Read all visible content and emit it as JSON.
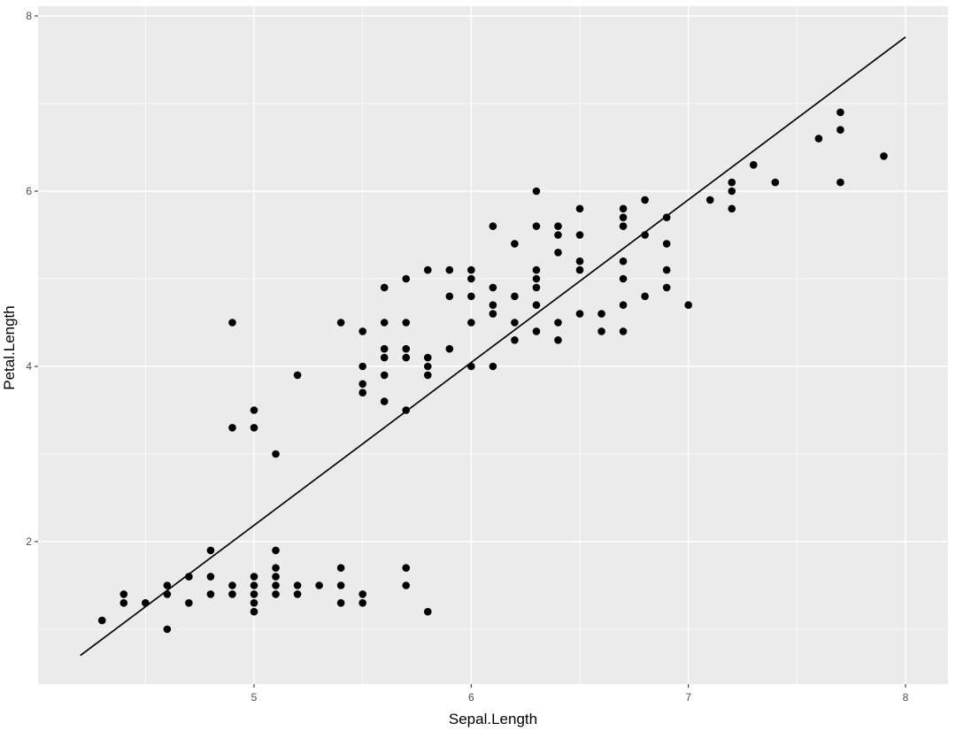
{
  "chart_data": {
    "type": "scatter",
    "xlabel": "Sepal.Length",
    "ylabel": "Petal.Length",
    "xlim": [
      4.0,
      8.2
    ],
    "ylim": [
      0.7,
      8.0
    ],
    "x_ticks": [
      5,
      6,
      7,
      8
    ],
    "y_ticks": [
      2,
      4,
      6,
      8
    ],
    "grid": true,
    "points": [
      [
        4.3,
        1.1
      ],
      [
        4.4,
        1.3
      ],
      [
        4.4,
        1.4
      ],
      [
        4.5,
        1.3
      ],
      [
        4.6,
        1.0
      ],
      [
        4.6,
        1.4
      ],
      [
        4.6,
        1.5
      ],
      [
        4.7,
        1.3
      ],
      [
        4.7,
        1.6
      ],
      [
        4.8,
        1.4
      ],
      [
        4.8,
        1.6
      ],
      [
        4.8,
        1.9
      ],
      [
        4.9,
        1.4
      ],
      [
        4.9,
        1.5
      ],
      [
        4.9,
        3.3
      ],
      [
        4.9,
        4.5
      ],
      [
        5.0,
        1.2
      ],
      [
        5.0,
        1.3
      ],
      [
        5.0,
        1.4
      ],
      [
        5.0,
        1.5
      ],
      [
        5.0,
        1.6
      ],
      [
        5.0,
        3.3
      ],
      [
        5.0,
        3.5
      ],
      [
        5.1,
        1.4
      ],
      [
        5.1,
        1.5
      ],
      [
        5.1,
        1.6
      ],
      [
        5.1,
        1.7
      ],
      [
        5.1,
        1.9
      ],
      [
        5.1,
        3.0
      ],
      [
        5.2,
        1.4
      ],
      [
        5.2,
        1.5
      ],
      [
        5.2,
        3.9
      ],
      [
        5.3,
        1.5
      ],
      [
        5.4,
        1.3
      ],
      [
        5.4,
        1.5
      ],
      [
        5.4,
        1.7
      ],
      [
        5.4,
        4.5
      ],
      [
        5.5,
        1.3
      ],
      [
        5.5,
        1.4
      ],
      [
        5.5,
        3.7
      ],
      [
        5.5,
        3.8
      ],
      [
        5.5,
        4.0
      ],
      [
        5.5,
        4.4
      ],
      [
        5.6,
        3.6
      ],
      [
        5.6,
        3.9
      ],
      [
        5.6,
        4.1
      ],
      [
        5.6,
        4.2
      ],
      [
        5.6,
        4.5
      ],
      [
        5.6,
        4.9
      ],
      [
        5.7,
        1.5
      ],
      [
        5.7,
        1.7
      ],
      [
        5.7,
        3.5
      ],
      [
        5.7,
        4.1
      ],
      [
        5.7,
        4.2
      ],
      [
        5.7,
        4.5
      ],
      [
        5.7,
        5.0
      ],
      [
        5.8,
        1.2
      ],
      [
        5.8,
        3.9
      ],
      [
        5.8,
        4.0
      ],
      [
        5.8,
        4.1
      ],
      [
        5.8,
        5.1
      ],
      [
        5.9,
        4.2
      ],
      [
        5.9,
        4.8
      ],
      [
        5.9,
        5.1
      ],
      [
        6.0,
        4.0
      ],
      [
        6.0,
        4.5
      ],
      [
        6.0,
        4.8
      ],
      [
        6.0,
        5.0
      ],
      [
        6.0,
        5.1
      ],
      [
        6.1,
        4.0
      ],
      [
        6.1,
        4.6
      ],
      [
        6.1,
        4.7
      ],
      [
        6.1,
        4.9
      ],
      [
        6.1,
        5.6
      ],
      [
        6.2,
        4.3
      ],
      [
        6.2,
        4.5
      ],
      [
        6.2,
        4.8
      ],
      [
        6.2,
        5.4
      ],
      [
        6.3,
        4.4
      ],
      [
        6.3,
        4.7
      ],
      [
        6.3,
        4.9
      ],
      [
        6.3,
        5.0
      ],
      [
        6.3,
        5.1
      ],
      [
        6.3,
        5.6
      ],
      [
        6.3,
        6.0
      ],
      [
        6.4,
        4.3
      ],
      [
        6.4,
        4.5
      ],
      [
        6.4,
        5.3
      ],
      [
        6.4,
        5.5
      ],
      [
        6.4,
        5.6
      ],
      [
        6.5,
        4.6
      ],
      [
        6.5,
        5.1
      ],
      [
        6.5,
        5.2
      ],
      [
        6.5,
        5.5
      ],
      [
        6.5,
        5.8
      ],
      [
        6.6,
        4.4
      ],
      [
        6.6,
        4.6
      ],
      [
        6.7,
        4.4
      ],
      [
        6.7,
        4.7
      ],
      [
        6.7,
        5.0
      ],
      [
        6.7,
        5.2
      ],
      [
        6.7,
        5.6
      ],
      [
        6.7,
        5.7
      ],
      [
        6.7,
        5.8
      ],
      [
        6.8,
        4.8
      ],
      [
        6.8,
        5.5
      ],
      [
        6.8,
        5.9
      ],
      [
        6.9,
        4.9
      ],
      [
        6.9,
        5.1
      ],
      [
        6.9,
        5.4
      ],
      [
        6.9,
        5.7
      ],
      [
        7.0,
        4.7
      ],
      [
        7.1,
        5.9
      ],
      [
        7.2,
        5.8
      ],
      [
        7.2,
        6.0
      ],
      [
        7.2,
        6.1
      ],
      [
        7.3,
        6.3
      ],
      [
        7.4,
        6.1
      ],
      [
        7.6,
        6.6
      ],
      [
        7.7,
        6.1
      ],
      [
        7.7,
        6.7
      ],
      [
        7.7,
        6.9
      ],
      [
        7.9,
        6.4
      ]
    ],
    "fit_line": {
      "type": "line",
      "x": [
        4.2,
        8.0
      ],
      "y": [
        0.7,
        7.76
      ]
    }
  }
}
